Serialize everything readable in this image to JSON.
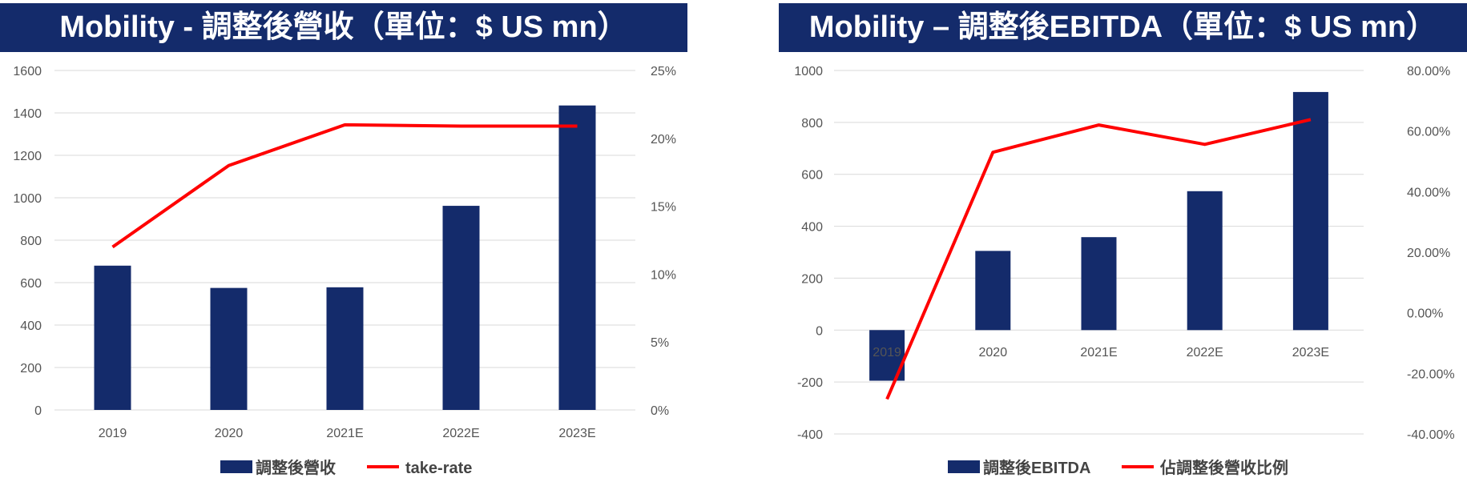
{
  "chart_data": [
    {
      "type": "bar",
      "title": "Mobility - 調整後營收（單位：$ US mn）",
      "categories": [
        "2019",
        "2020",
        "2021E",
        "2022E",
        "2023E"
      ],
      "series": [
        {
          "name": "調整後營收",
          "type": "bar",
          "axis": "left",
          "color": "#142b6b",
          "values": [
            680,
            575,
            578,
            962,
            1435
          ]
        },
        {
          "name": "take-rate",
          "type": "line",
          "axis": "right",
          "color": "#ff0000",
          "values": [
            0.12,
            0.18,
            0.21,
            0.209,
            0.209
          ]
        }
      ],
      "ylim": [
        0,
        1600
      ],
      "yticks": [
        "0",
        "200",
        "400",
        "600",
        "800",
        "1000",
        "1200",
        "1400",
        "1600"
      ],
      "y2lim": [
        0,
        0.25
      ],
      "y2ticks": [
        "0%",
        "5%",
        "10%",
        "15%",
        "20%",
        "25%"
      ],
      "grid": true,
      "legend": "bottom-center"
    },
    {
      "type": "bar",
      "title": "Mobility – 調整後EBITDA（單位：$ US mn）",
      "categories": [
        "2019",
        "2020",
        "2021E",
        "2022E",
        "2023E"
      ],
      "series": [
        {
          "name": "調整後EBITDA",
          "type": "bar",
          "axis": "left",
          "color": "#142b6b",
          "values": [
            -195,
            305,
            358,
            535,
            917
          ]
        },
        {
          "name": "佔調整後營收比例",
          "type": "line",
          "axis": "right",
          "color": "#ff0000",
          "values": [
            -0.285,
            0.53,
            0.62,
            0.556,
            0.638
          ]
        }
      ],
      "ylim": [
        -400,
        1000
      ],
      "yticks": [
        "-400",
        "-200",
        "0",
        "200",
        "400",
        "600",
        "800",
        "1000"
      ],
      "y2lim": [
        -0.4,
        0.8
      ],
      "y2ticks": [
        "-40.00%",
        "-20.00%",
        "0.00%",
        "20.00%",
        "40.00%",
        "60.00%",
        "80.00%"
      ],
      "grid": true,
      "legend": "bottom-center"
    }
  ]
}
